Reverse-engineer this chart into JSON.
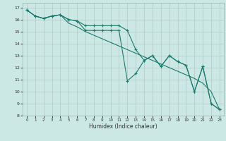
{
  "xlabel": "Humidex (Indice chaleur)",
  "background_color": "#cce8e4",
  "grid_color": "#b0c8c4",
  "line_color": "#1a7a6e",
  "xlim": [
    -0.5,
    23.5
  ],
  "ylim": [
    8,
    17.4
  ],
  "xticks": [
    0,
    1,
    2,
    3,
    4,
    5,
    6,
    7,
    8,
    9,
    10,
    11,
    12,
    13,
    14,
    15,
    16,
    17,
    18,
    19,
    20,
    21,
    22,
    23
  ],
  "yticks": [
    8,
    9,
    10,
    11,
    12,
    13,
    14,
    15,
    16,
    17
  ],
  "line1_x": [
    0,
    1,
    2,
    3,
    4,
    5,
    6,
    7,
    8,
    9,
    10,
    11,
    12,
    13,
    14,
    15,
    16,
    17,
    18,
    19,
    20,
    21,
    22,
    23
  ],
  "line1_y": [
    16.8,
    16.3,
    16.1,
    16.3,
    16.4,
    16.0,
    15.9,
    15.5,
    15.5,
    15.5,
    15.5,
    15.5,
    15.1,
    13.5,
    12.6,
    13.0,
    12.1,
    13.0,
    12.5,
    12.2,
    10.0,
    12.1,
    9.0,
    8.5
  ],
  "line2_x": [
    0,
    1,
    2,
    3,
    4,
    5,
    6,
    7,
    8,
    9,
    10,
    11,
    12,
    13,
    14,
    15,
    16,
    17,
    18,
    19,
    20,
    21,
    22,
    23
  ],
  "line2_y": [
    16.8,
    16.3,
    16.1,
    16.3,
    16.4,
    16.0,
    15.9,
    15.1,
    15.1,
    15.1,
    15.1,
    15.1,
    10.9,
    11.5,
    12.6,
    13.0,
    12.1,
    13.0,
    12.5,
    12.2,
    10.0,
    12.1,
    9.0,
    8.5
  ],
  "line3_x": [
    0,
    1,
    2,
    3,
    4,
    5,
    6,
    7,
    8,
    9,
    10,
    11,
    12,
    13,
    14,
    15,
    16,
    17,
    18,
    19,
    20,
    21,
    22,
    23
  ],
  "line3_y": [
    16.8,
    16.3,
    16.1,
    16.3,
    16.4,
    15.7,
    15.4,
    15.0,
    14.7,
    14.4,
    14.1,
    13.8,
    13.5,
    13.2,
    12.9,
    12.6,
    12.3,
    12.0,
    11.7,
    11.4,
    11.1,
    10.7,
    10.0,
    8.5
  ]
}
